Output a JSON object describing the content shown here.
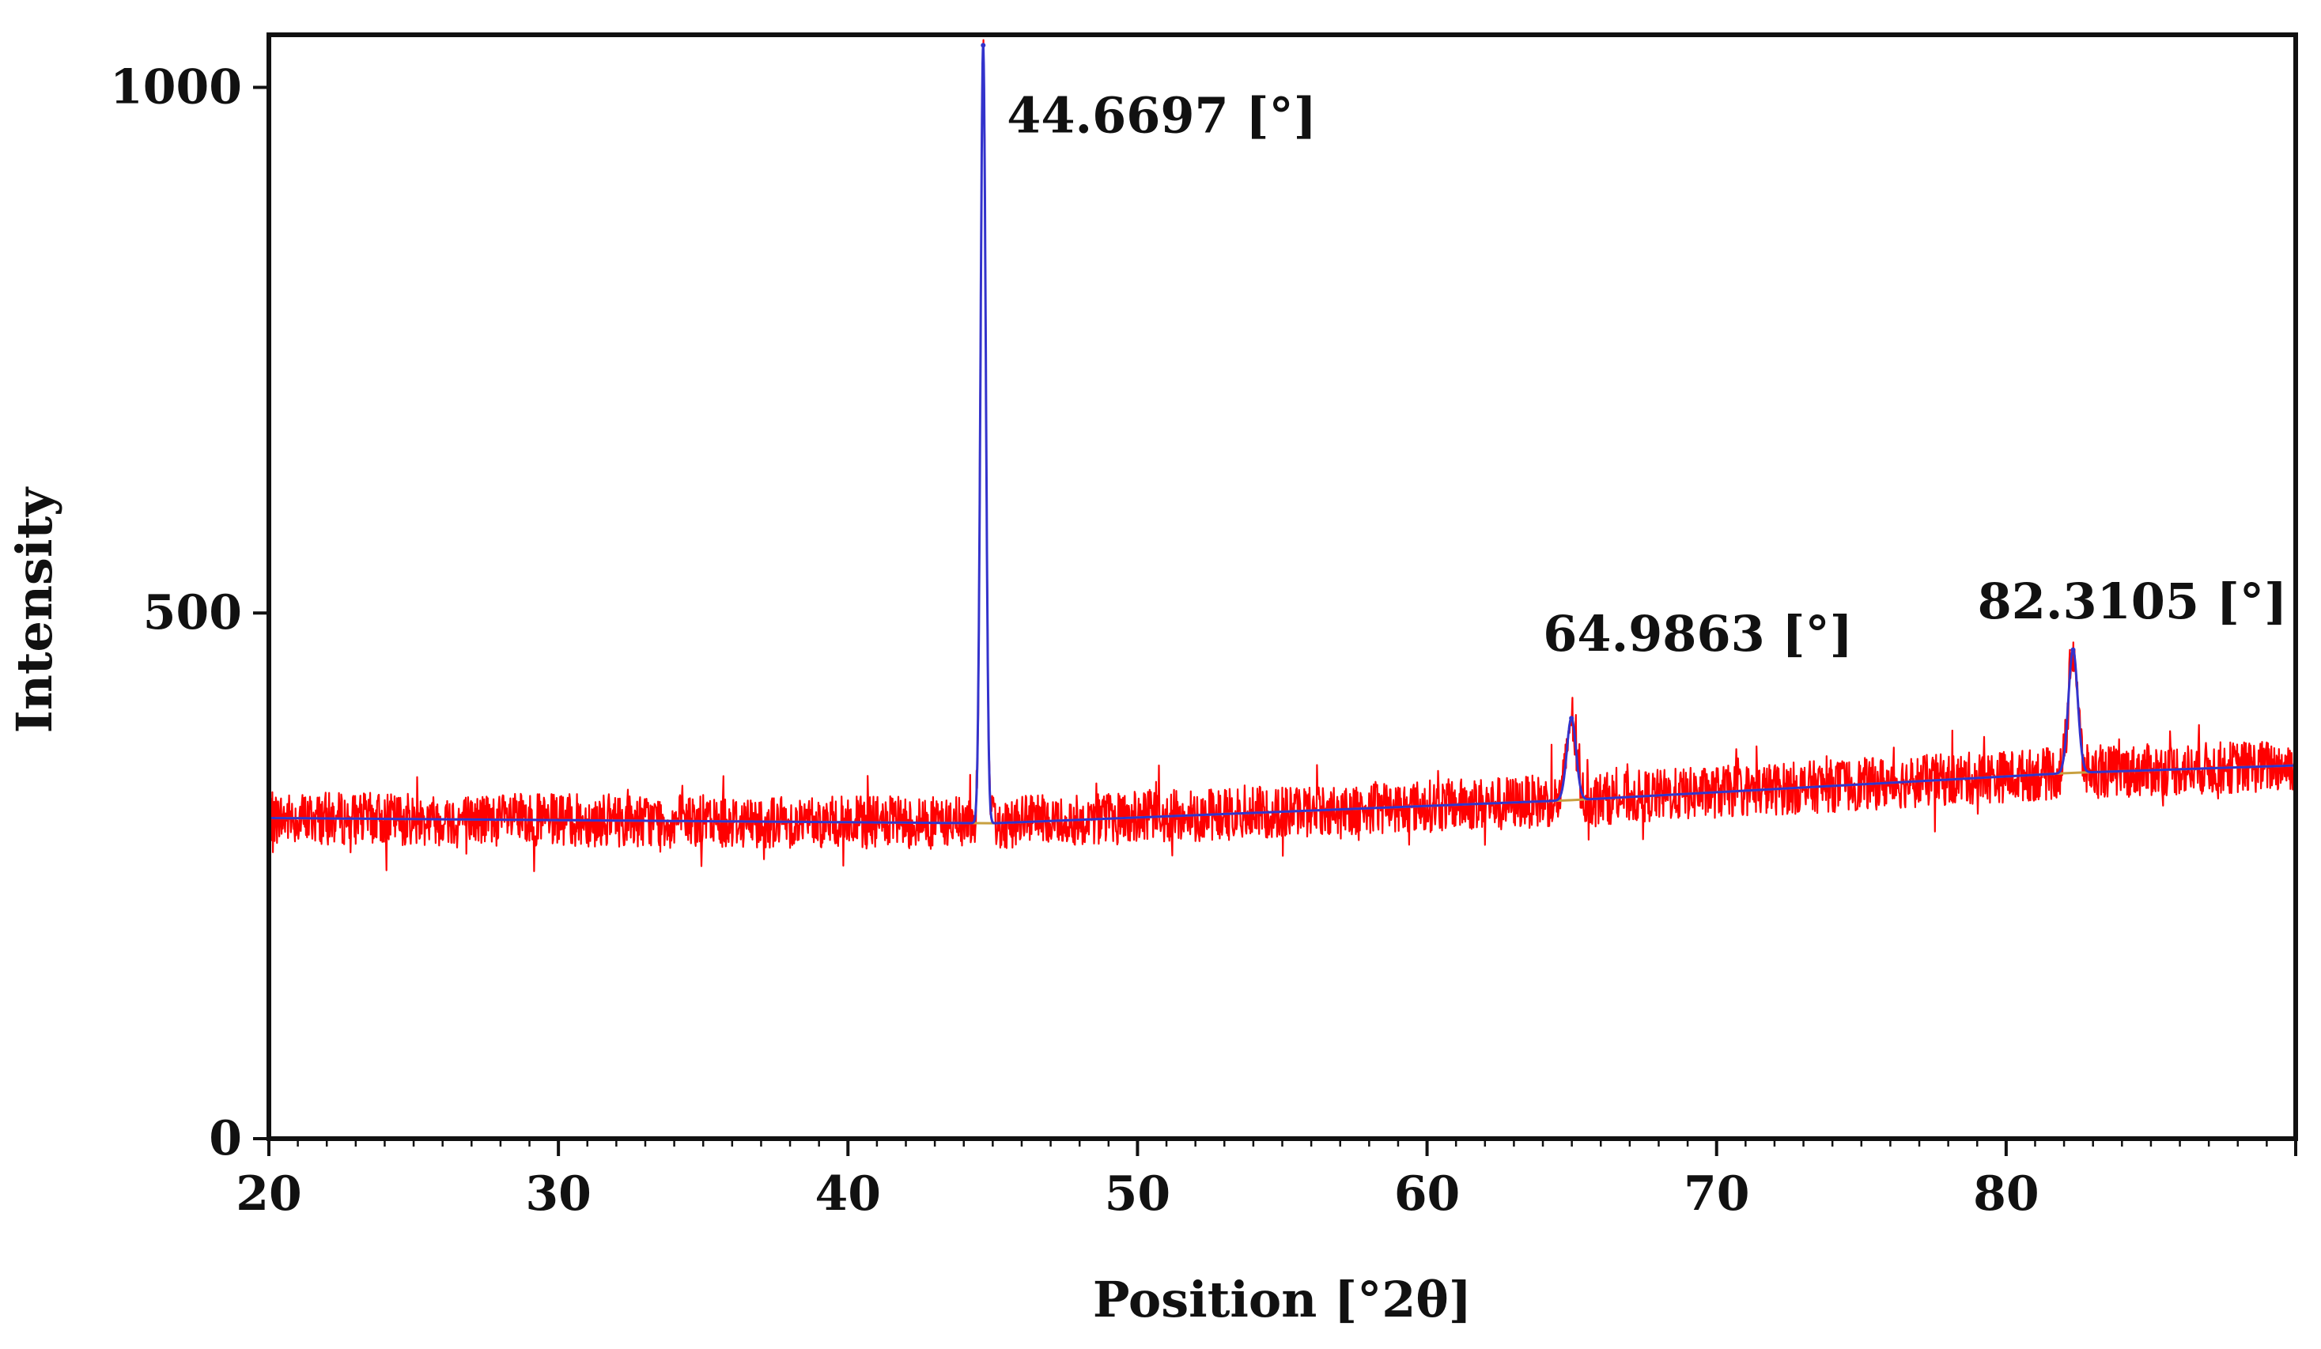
{
  "chart_data": {
    "type": "line",
    "title": "",
    "xlabel": "Position [°2θ]",
    "ylabel": "Intensity",
    "xlim": [
      20,
      90
    ],
    "ylim": [
      0,
      1050
    ],
    "xticks": [
      20,
      30,
      40,
      50,
      60,
      70,
      80
    ],
    "yticks": [
      0,
      500,
      1000
    ],
    "grid": false,
    "baseline": {
      "x": [
        20,
        45,
        65,
        82.3,
        90
      ],
      "y": [
        305,
        300,
        322,
        348,
        355
      ]
    },
    "peaks": [
      {
        "position": 44.6697,
        "intensity": 1040,
        "label": "44.6697 [°]"
      },
      {
        "position": 64.9863,
        "intensity": 400,
        "label": "64.9863 [°]"
      },
      {
        "position": 82.3105,
        "intensity": 465,
        "label": "82.3105 [°]"
      }
    ],
    "noise_amplitude": 25,
    "series": [
      {
        "values_source": "observed",
        "color": "#ff0000"
      },
      {
        "values_source": "fit",
        "color": "#3333cc"
      },
      {
        "values_source": "background",
        "color": "#c8a040"
      }
    ]
  }
}
